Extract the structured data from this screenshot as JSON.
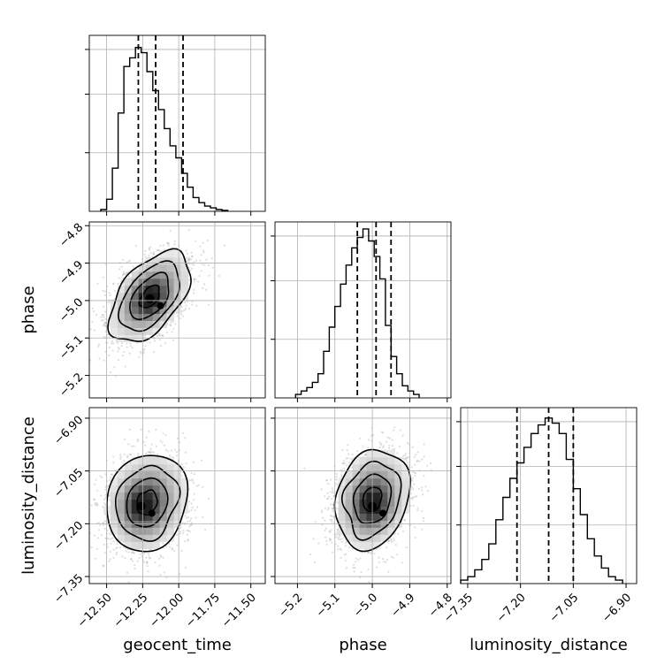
{
  "chart_data": {
    "type": "corner",
    "parameters": [
      "geocent_time",
      "phase",
      "luminosity_distance"
    ],
    "axis_labels": {
      "x": [
        "geocent_time",
        "phase",
        "luminosity_distance"
      ],
      "y": [
        "",
        "phase",
        "luminosity_distance"
      ]
    },
    "ranges": {
      "geocent_time": [
        -12.62,
        -11.4
      ],
      "phase": [
        -5.26,
        -4.79
      ],
      "luminosity_distance": [
        -7.37,
        -6.87
      ]
    },
    "ticks": {
      "geocent_time": [
        -12.5,
        -12.25,
        -12.0,
        -11.75,
        -11.5
      ],
      "phase": [
        -5.2,
        -5.1,
        -5.0,
        -4.9,
        -4.8
      ],
      "luminosity_distance": [
        -7.35,
        -7.2,
        -7.05,
        -6.9
      ]
    },
    "tick_labels": {
      "geocent_time": [
        "−12.50",
        "−12.25",
        "−12.00",
        "−11.75",
        "−11.50"
      ],
      "phase": [
        "−5.2",
        "−5.1",
        "−5.0",
        "−4.9",
        "−4.8"
      ],
      "luminosity_distance": [
        "−7.35",
        "−7.20",
        "−7.05",
        "−6.90"
      ]
    },
    "quantiles": {
      "geocent_time": [
        -12.28,
        -12.16,
        -11.97
      ],
      "phase": [
        -5.04,
        -4.99,
        -4.95
      ],
      "luminosity_distance": [
        -7.21,
        -7.12,
        -7.05
      ]
    },
    "histograms": {
      "geocent_time": {
        "bins": [
          -12.54,
          -12.5,
          -12.46,
          -12.42,
          -12.38,
          -12.34,
          -12.3,
          -12.26,
          -12.22,
          -12.18,
          -12.14,
          -12.1,
          -12.06,
          -12.02,
          -11.98,
          -11.94,
          -11.9,
          -11.86,
          -11.82,
          -11.78,
          -11.74,
          -11.7,
          -11.66
        ],
        "counts": [
          0.01,
          0.07,
          0.25,
          0.57,
          0.84,
          0.89,
          0.95,
          0.92,
          0.81,
          0.7,
          0.59,
          0.48,
          0.38,
          0.31,
          0.22,
          0.14,
          0.08,
          0.05,
          0.03,
          0.02,
          0.01,
          0.005
        ]
      },
      "phase": {
        "bins": [
          -5.205,
          -5.19,
          -5.175,
          -5.16,
          -5.145,
          -5.13,
          -5.115,
          -5.1,
          -5.085,
          -5.07,
          -5.055,
          -5.04,
          -5.025,
          -5.01,
          -4.995,
          -4.98,
          -4.965,
          -4.95,
          -4.935,
          -4.92,
          -4.905,
          -4.89,
          -4.875
        ],
        "counts": [
          0.02,
          0.04,
          0.06,
          0.09,
          0.14,
          0.27,
          0.41,
          0.53,
          0.66,
          0.77,
          0.87,
          0.93,
          0.98,
          0.91,
          0.82,
          0.69,
          0.42,
          0.24,
          0.14,
          0.07,
          0.04,
          0.02
        ]
      },
      "luminosity_distance": {
        "bins": [
          -7.37,
          -7.35,
          -7.33,
          -7.31,
          -7.29,
          -7.27,
          -7.25,
          -7.23,
          -7.21,
          -7.19,
          -7.17,
          -7.15,
          -7.13,
          -7.11,
          -7.09,
          -7.07,
          -7.05,
          -7.03,
          -7.01,
          -6.99,
          -6.97,
          -6.95,
          -6.93,
          -6.91
        ],
        "counts": [
          0.02,
          0.04,
          0.08,
          0.14,
          0.23,
          0.37,
          0.5,
          0.61,
          0.7,
          0.79,
          0.87,
          0.92,
          0.96,
          0.93,
          0.87,
          0.72,
          0.55,
          0.4,
          0.26,
          0.16,
          0.09,
          0.04,
          0.02
        ]
      }
    },
    "contours_2d": [
      {
        "x": "geocent_time",
        "y": "phase",
        "center": [
          -12.2,
          -4.99
        ],
        "core": [
          -12.2,
          -4.995
        ],
        "sigma": [
          0.14,
          0.06
        ],
        "rho": 0.5,
        "levels": [
          0.5,
          1.0,
          1.5,
          2.0
        ]
      },
      {
        "x": "geocent_time",
        "y": "luminosity_distance",
        "center": [
          -12.22,
          -7.14
        ],
        "core": [
          -12.26,
          -7.15
        ],
        "sigma": [
          0.14,
          0.07
        ],
        "rho": 0.15,
        "levels": [
          0.5,
          1.0,
          1.5,
          2.0
        ]
      },
      {
        "x": "phase",
        "y": "luminosity_distance",
        "center": [
          -5.0,
          -7.13
        ],
        "core": [
          -5.0,
          -7.15
        ],
        "sigma": [
          0.05,
          0.07
        ],
        "rho": 0.2,
        "levels": [
          0.5,
          1.0,
          1.5,
          2.0
        ]
      }
    ],
    "grid": true
  }
}
